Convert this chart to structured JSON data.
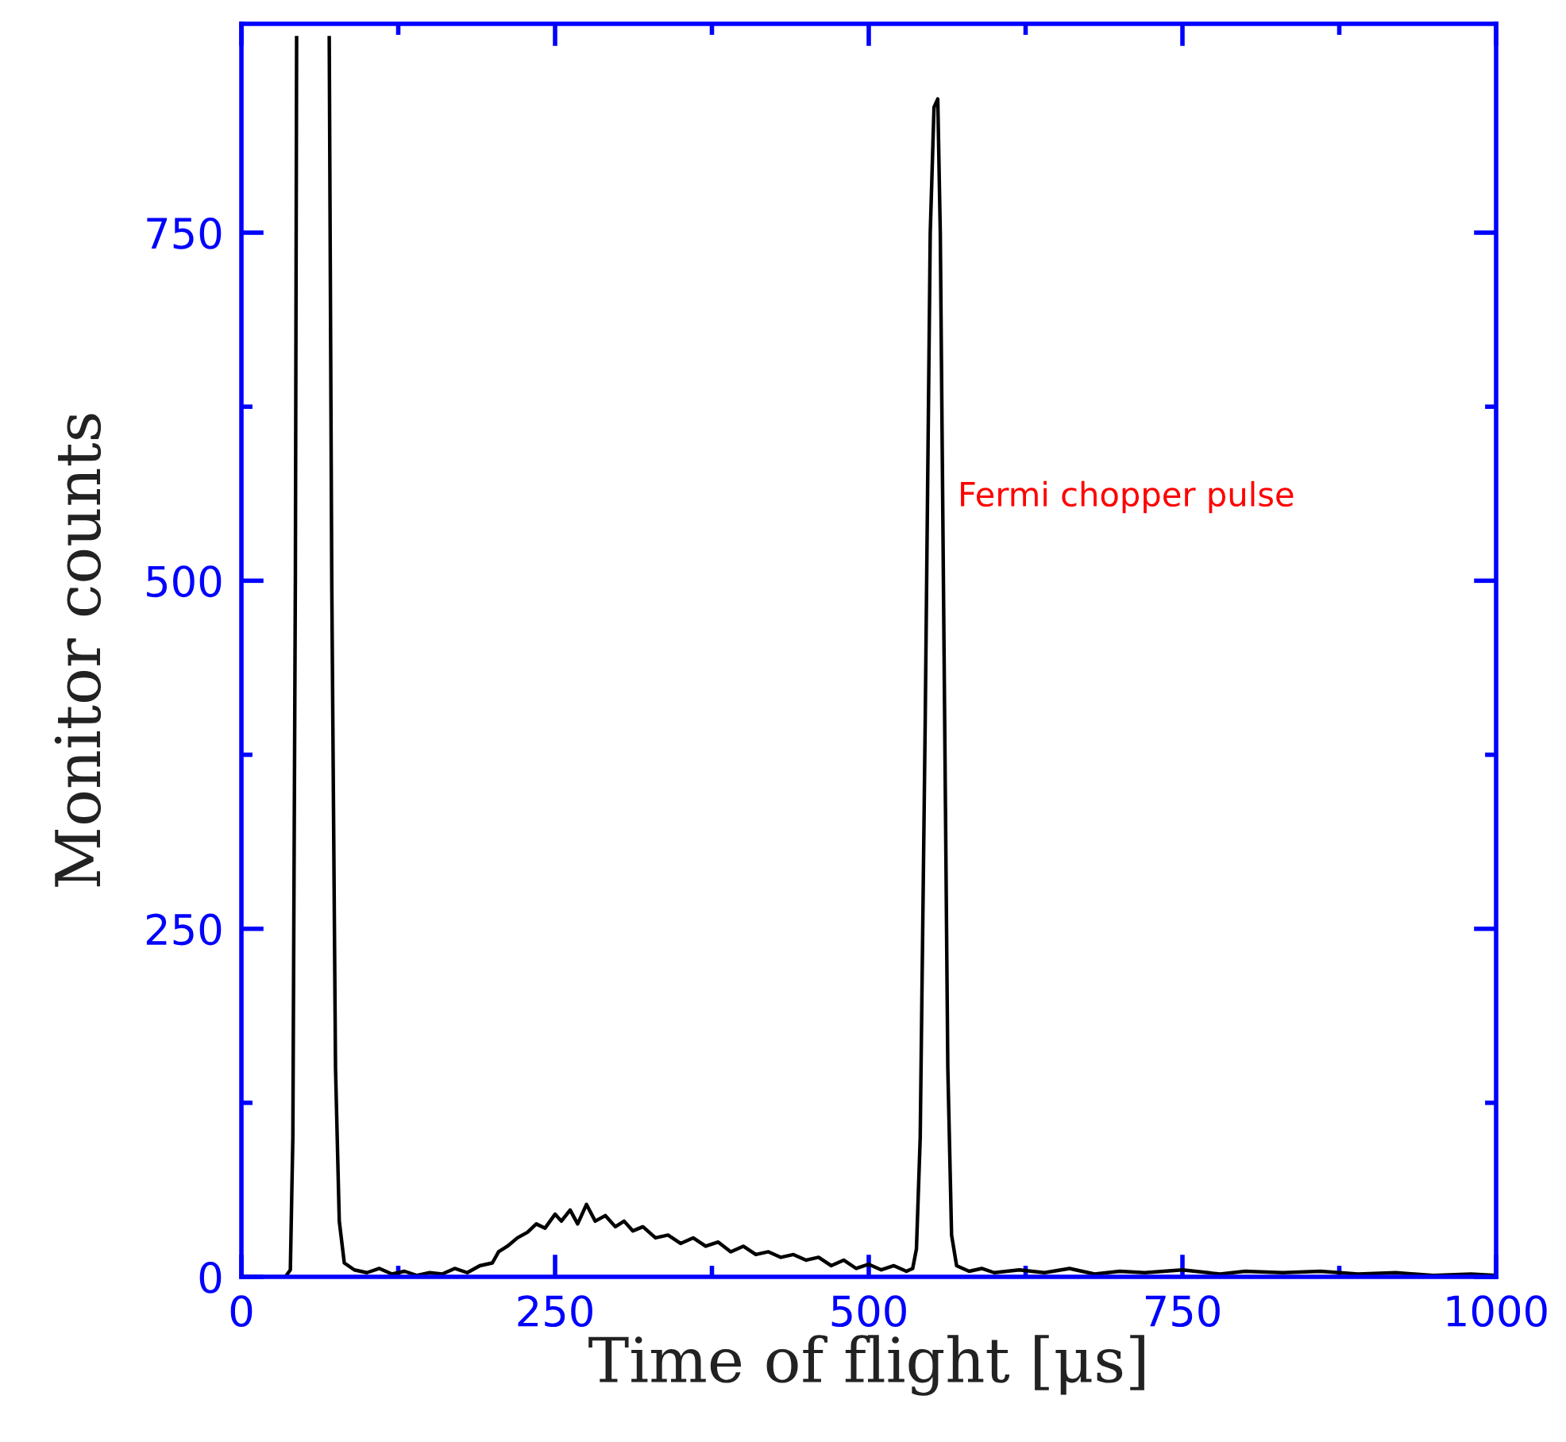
{
  "chart_data": {
    "type": "line",
    "xlabel": "Time of flight [μs]",
    "ylabel": "Monitor counts",
    "annotations": [
      "Fermi chopper pulse"
    ],
    "xlim": [
      0,
      1000
    ],
    "ylim": [
      0,
      900
    ],
    "xticks": [
      0,
      {
        "value": 125,
        "label": null
      },
      250,
      {
        "value": 375,
        "label": null
      },
      500,
      {
        "value": 625,
        "label": null
      },
      750,
      {
        "value": 875,
        "label": null
      },
      1000
    ],
    "yticks": [
      0,
      {
        "value": 125,
        "label": null
      },
      250,
      {
        "value": 375,
        "label": null
      },
      500,
      {
        "value": 625,
        "label": null
      },
      750
    ],
    "grid": false,
    "marker": "none",
    "line_style": "solid",
    "series": [
      {
        "color": "#000000",
        "x": [
          0,
          35,
          39,
          41,
          43,
          44,
          57,
          70,
          72,
          75,
          78,
          82,
          90,
          100,
          110,
          120,
          130,
          140,
          150,
          160,
          170,
          180,
          190,
          200,
          205,
          212,
          220,
          228,
          235,
          242,
          250,
          255,
          262,
          268,
          275,
          282,
          290,
          298,
          305,
          312,
          320,
          330,
          340,
          350,
          360,
          370,
          380,
          390,
          400,
          410,
          420,
          430,
          440,
          450,
          460,
          470,
          480,
          490,
          500,
          510,
          520,
          530,
          535,
          538,
          541,
          545,
          549,
          552,
          555,
          557,
          560,
          563,
          566,
          570,
          580,
          590,
          600,
          620,
          640,
          660,
          680,
          700,
          720,
          750,
          780,
          800,
          830,
          860,
          890,
          920,
          950,
          980,
          1000
        ],
        "values": [
          0,
          0,
          5,
          100,
          500,
          890,
          null,
          890,
          500,
          150,
          40,
          10,
          5,
          3,
          6,
          2,
          4,
          1,
          3,
          2,
          6,
          3,
          8,
          10,
          18,
          22,
          28,
          32,
          38,
          35,
          45,
          40,
          48,
          38,
          52,
          40,
          44,
          36,
          40,
          33,
          36,
          28,
          30,
          24,
          28,
          22,
          25,
          18,
          22,
          16,
          18,
          14,
          16,
          12,
          14,
          8,
          12,
          6,
          9,
          5,
          8,
          4,
          6,
          20,
          100,
          400,
          750,
          840,
          846,
          750,
          450,
          150,
          30,
          8,
          4,
          6,
          3,
          5,
          3,
          6,
          2,
          4,
          3,
          5,
          2,
          4,
          3,
          4,
          2,
          3,
          1,
          2,
          1
        ]
      }
    ]
  }
}
